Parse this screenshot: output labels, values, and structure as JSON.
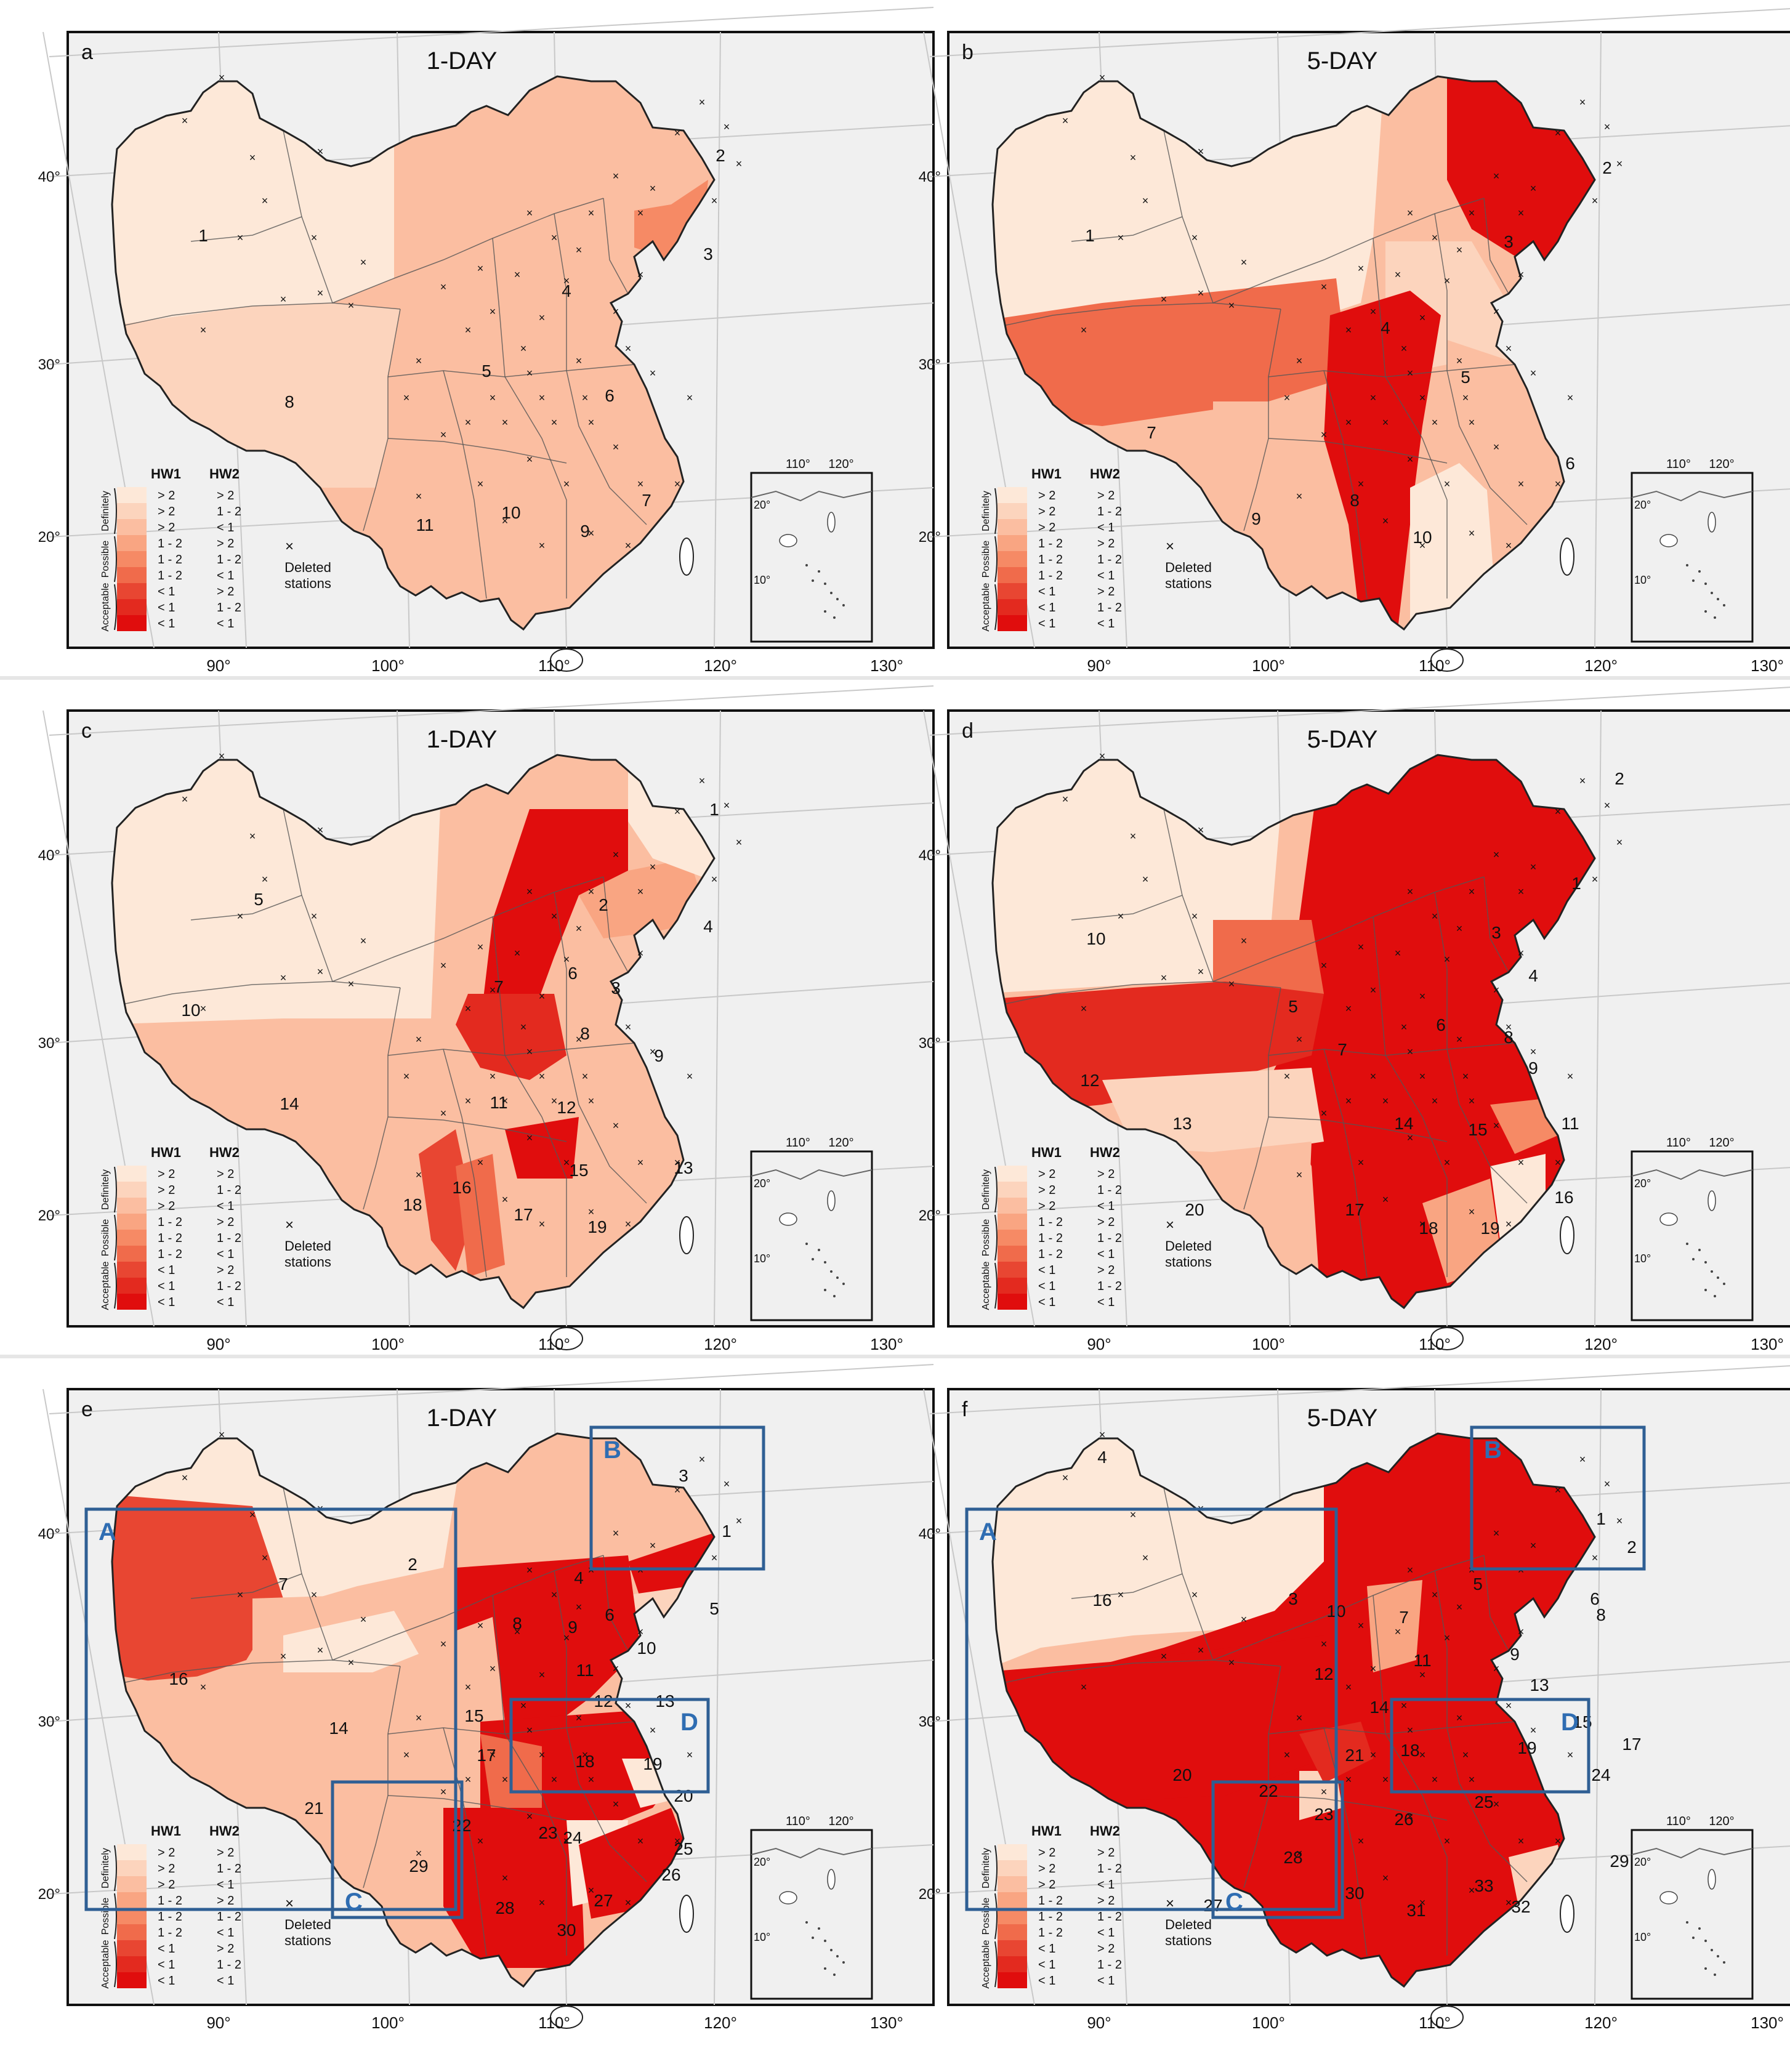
{
  "colors": {
    "sea": "#f0f0f0",
    "land_outline": "#222222",
    "region_border": "#555555",
    "grid": "#c8c8c8",
    "panel_frame": "#111111",
    "inset_box": "#2f5f94",
    "inset_box_label": "#2f6db2",
    "scale": [
      "#fde8d8",
      "#fcd4bd",
      "#fbbea1",
      "#f9a582",
      "#f68a65",
      "#f06b4b",
      "#e84632",
      "#e32a1f",
      "#e00d0d"
    ]
  },
  "axis": {
    "lat_ticks": [
      "40°",
      "30°",
      "20°"
    ],
    "lon_ticks": [
      "90°",
      "100°",
      "110°",
      "120°",
      "130°"
    ]
  },
  "inset": {
    "lon_labels": [
      "110°",
      "120°"
    ],
    "lat_labels": [
      "20°",
      "10°"
    ]
  },
  "legend": {
    "header_hw1": "HW1",
    "header_hw2": "HW2",
    "group_labels": [
      "Definitely",
      "Possible",
      "Acceptable"
    ],
    "rows": [
      {
        "hw1": "> 2",
        "hw2": "> 2"
      },
      {
        "hw1": "> 2",
        "hw2": "1 - 2"
      },
      {
        "hw1": "> 2",
        "hw2": "< 1"
      },
      {
        "hw1": "1 - 2",
        "hw2": "> 2"
      },
      {
        "hw1": "1 - 2",
        "hw2": "1 - 2"
      },
      {
        "hw1": "1 - 2",
        "hw2": "< 1"
      },
      {
        "hw1": "< 1",
        "hw2": "> 2"
      },
      {
        "hw1": "< 1",
        "hw2": "1 - 2"
      },
      {
        "hw1": "< 1",
        "hw2": "< 1"
      }
    ],
    "deleted_marker": "×",
    "deleted_label_1": "Deleted",
    "deleted_label_2": "stations"
  },
  "panels": [
    {
      "letter": "a",
      "title": "1-DAY",
      "region_labels": [
        "1",
        "2",
        "3",
        "4",
        "5",
        "6",
        "7",
        "8",
        "9",
        "10",
        "11"
      ]
    },
    {
      "letter": "b",
      "title": "5-DAY",
      "region_labels": [
        "1",
        "2",
        "3",
        "4",
        "5",
        "6",
        "7",
        "8",
        "9",
        "10"
      ]
    },
    {
      "letter": "c",
      "title": "1-DAY",
      "region_labels": [
        "1",
        "2",
        "3",
        "4",
        "5",
        "6",
        "7",
        "8",
        "9",
        "10",
        "11",
        "12",
        "13",
        "14",
        "15",
        "16",
        "17",
        "18",
        "19"
      ]
    },
    {
      "letter": "d",
      "title": "5-DAY",
      "region_labels": [
        "1",
        "2",
        "3",
        "4",
        "5",
        "6",
        "7",
        "8",
        "9",
        "10",
        "11",
        "12",
        "13",
        "14",
        "15",
        "16",
        "17",
        "18",
        "19",
        "20"
      ]
    },
    {
      "letter": "e",
      "title": "1-DAY",
      "region_labels": [
        "1",
        "2",
        "3",
        "4",
        "5",
        "6",
        "7",
        "8",
        "9",
        "10",
        "11",
        "12",
        "13",
        "14",
        "15",
        "16",
        "17",
        "18",
        "19",
        "20",
        "21",
        "22",
        "23",
        "24",
        "25",
        "26",
        "27",
        "28",
        "29",
        "30"
      ],
      "boxes": [
        "A",
        "B",
        "C",
        "D"
      ]
    },
    {
      "letter": "f",
      "title": "5-DAY",
      "region_labels": [
        "1",
        "2",
        "3",
        "4",
        "5",
        "6",
        "7",
        "8",
        "9",
        "10",
        "11",
        "12",
        "13",
        "14",
        "15",
        "16",
        "17",
        "18",
        "19",
        "20",
        "21",
        "22",
        "23",
        "24",
        "25",
        "26",
        "27",
        "28",
        "29",
        "30",
        "31",
        "32",
        "33"
      ],
      "boxes": [
        "A",
        "B",
        "C",
        "D"
      ]
    }
  ]
}
